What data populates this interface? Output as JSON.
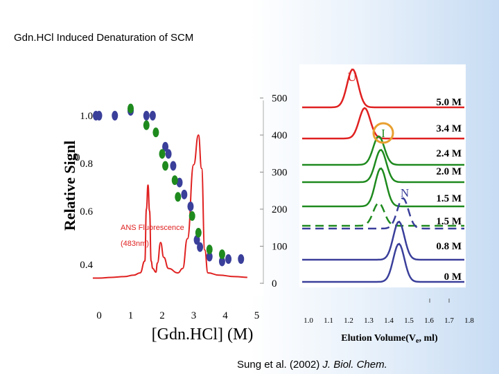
{
  "slide_title": "Gdn.HCl Induced Denaturation of SCM",
  "citation": {
    "authors": "Sung et al. (2002) ",
    "journal": "J. Biol. Chem."
  },
  "colors": {
    "blue_marker": "#3a3f9a",
    "green_marker": "#1e8a1e",
    "ans_trace": "#e02020",
    "orange_circle": "#e8a030",
    "trace_U": "#e02020",
    "trace_green": "#1e8a1e",
    "trace_blue": "#3a3f9a"
  },
  "chart_data": [
    {
      "type": "scatter",
      "xlabel": "[Gdn.HCl] (M)",
      "ylabel": "Relative Signl",
      "x_ticks": [
        "0",
        "1",
        "2",
        "3",
        "4",
        "5"
      ],
      "y_ticks_left": [
        "1.0",
        "0.8",
        "0.6",
        "0.4"
      ],
      "y_tick_fragment": "0",
      "y_ticks_right": [
        "500",
        "400",
        "300",
        "200",
        "100",
        "0"
      ],
      "xlim": [
        0,
        5
      ],
      "annotation": [
        "ANS Fluorescence",
        "(483nm)"
      ],
      "series": [
        {
          "marker_color": "blue",
          "points": [
            [
              -0.1,
              1.0
            ],
            [
              0.0,
              1.0
            ],
            [
              0.5,
              1.0
            ],
            [
              1.0,
              1.02
            ],
            [
              1.5,
              1.0
            ],
            [
              1.7,
              1.0
            ],
            [
              2.1,
              0.87
            ],
            [
              2.2,
              0.84
            ],
            [
              2.35,
              0.79
            ],
            [
              2.55,
              0.72
            ],
            [
              2.7,
              0.67
            ],
            [
              2.9,
              0.62
            ],
            [
              3.1,
              0.48
            ],
            [
              3.2,
              0.45
            ],
            [
              3.5,
              0.41
            ],
            [
              3.9,
              0.39
            ],
            [
              4.1,
              0.4
            ],
            [
              4.5,
              0.4
            ]
          ]
        },
        {
          "marker_color": "green",
          "points": [
            [
              1.0,
              1.03
            ],
            [
              1.5,
              0.96
            ],
            [
              1.8,
              0.93
            ],
            [
              2.0,
              0.84
            ],
            [
              2.1,
              0.79
            ],
            [
              2.4,
              0.73
            ],
            [
              2.5,
              0.66
            ],
            [
              2.95,
              0.58
            ],
            [
              3.15,
              0.51
            ],
            [
              3.5,
              0.44
            ],
            [
              3.9,
              0.42
            ]
          ]
        },
        {
          "name": "ANS Fluorescence",
          "style": "line",
          "points": [
            [
              -0.2,
              14
            ],
            [
              0.0,
              14
            ],
            [
              0.4,
              16
            ],
            [
              0.8,
              18
            ],
            [
              1.1,
              22
            ],
            [
              1.3,
              28
            ],
            [
              1.45,
              60
            ],
            [
              1.5,
              200
            ],
            [
              1.55,
              265
            ],
            [
              1.6,
              195
            ],
            [
              1.65,
              60
            ],
            [
              1.7,
              40
            ],
            [
              1.8,
              30
            ],
            [
              1.85,
              55
            ],
            [
              1.95,
              110
            ],
            [
              2.05,
              70
            ],
            [
              2.2,
              40
            ],
            [
              2.5,
              28
            ],
            [
              2.65,
              40
            ],
            [
              2.8,
              120
            ],
            [
              3.0,
              320
            ],
            [
              3.15,
              400
            ],
            [
              3.25,
              310
            ],
            [
              3.35,
              90
            ],
            [
              3.45,
              28
            ],
            [
              3.8,
              22
            ],
            [
              4.3,
              18
            ],
            [
              4.7,
              16
            ]
          ]
        }
      ]
    },
    {
      "type": "line",
      "xlabel": "Elution Volume(Ve, ml)",
      "x_ticks": [
        "1.0",
        "1.1",
        "1.2",
        "1.3",
        "1.4",
        "1.5",
        "1.6",
        "1.7",
        "1.8"
      ],
      "xlim": [
        1.0,
        1.8
      ],
      "peak_labels": [
        "U",
        "I",
        "N"
      ],
      "series": [
        {
          "name": "5.0 M",
          "color": "red",
          "dashed": false,
          "peak_x": 1.22,
          "peak_height": 1.0
        },
        {
          "name": "3.4 M",
          "color": "red",
          "dashed": false,
          "peak_x": 1.28,
          "peak_height": 0.8
        },
        {
          "name": "2.4 M",
          "color": "green",
          "dashed": false,
          "peak_x": 1.35,
          "peak_height": 0.75
        },
        {
          "name": "2.0 M",
          "color": "green",
          "dashed": false,
          "peak_x": 1.36,
          "peak_height": 0.85
        },
        {
          "name": "1.5 M",
          "color": "green",
          "dashed": false,
          "peak_x": 1.36,
          "peak_height": 1.0
        },
        {
          "name": "1.5 M",
          "color": "green",
          "dashed": true,
          "peak_x": 1.35,
          "peak_height": 0.6
        },
        {
          "name": "1.5 M",
          "color": "blue",
          "dashed": true,
          "peak_x": 1.47,
          "peak_height": 0.8
        },
        {
          "name": "0.8 M",
          "color": "blue",
          "dashed": false,
          "peak_x": 1.45,
          "peak_height": 1.0
        },
        {
          "name": "0 M",
          "color": "blue",
          "dashed": false,
          "peak_x": 1.45,
          "peak_height": 1.0
        }
      ]
    }
  ]
}
